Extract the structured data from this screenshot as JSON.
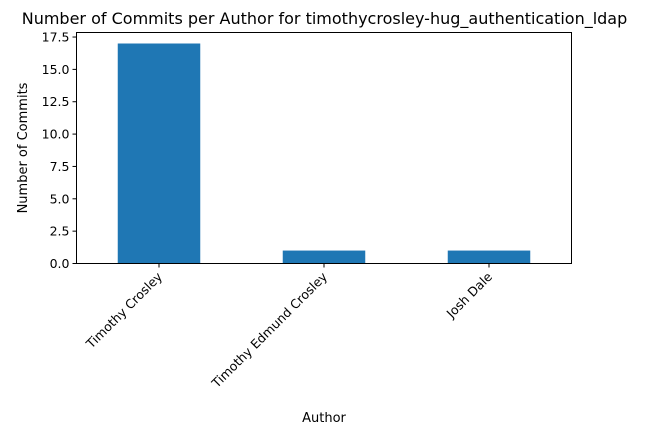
{
  "chart_data": {
    "type": "bar",
    "title": "Number of Commits per Author for timothycrosley-hug_authentication_ldap",
    "xlabel": "Author",
    "ylabel": "Number of Commits",
    "categories": [
      "Timothy Crosley",
      "Timothy Edmund Crosley",
      "Josh Dale"
    ],
    "values": [
      17,
      1,
      1
    ],
    "ylim": [
      0,
      17.85
    ],
    "yticks": [
      0.0,
      2.5,
      5.0,
      7.5,
      10.0,
      12.5,
      15.0,
      17.5
    ],
    "ytick_labels": [
      "0.0",
      "2.5",
      "5.0",
      "7.5",
      "10.0",
      "12.5",
      "15.0",
      "17.5"
    ],
    "bar_color": "#1f77b4",
    "grid": false,
    "legend": "none"
  }
}
